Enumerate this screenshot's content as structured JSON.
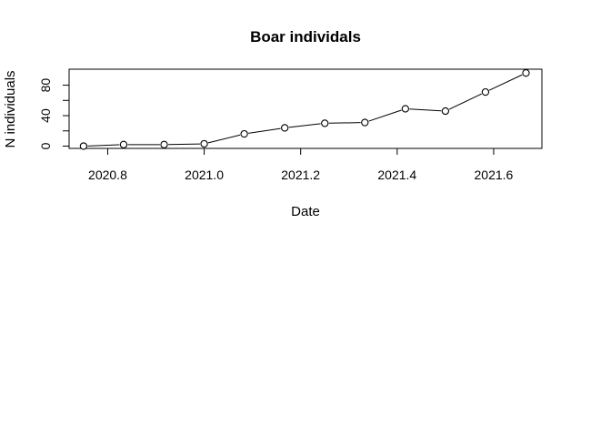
{
  "chart_data": {
    "type": "line",
    "title": "Boar individals",
    "xlabel": "Date",
    "ylabel": "N individuals",
    "xlim": [
      2020.72,
      2021.7
    ],
    "ylim": [
      -3,
      101
    ],
    "x_ticks": [
      2020.8,
      2021.0,
      2021.2,
      2021.4,
      2021.6
    ],
    "x_tick_labels": [
      "2020.8",
      "2021.0",
      "2021.2",
      "2021.4",
      "2021.6"
    ],
    "y_ticks": [
      0,
      20,
      40,
      60,
      80
    ],
    "y_tick_labels": [
      "0",
      "",
      "40",
      "",
      "80"
    ],
    "grid": false,
    "marker": "open-circle",
    "series": [
      {
        "x": [
          2020.75,
          2020.833,
          2020.917,
          2021.0,
          2021.083,
          2021.167,
          2021.25,
          2021.333,
          2021.417,
          2021.5,
          2021.583,
          2021.667
        ],
        "y": [
          0,
          2,
          2,
          3,
          16,
          24,
          30,
          31,
          49,
          46,
          71,
          96
        ]
      }
    ]
  }
}
